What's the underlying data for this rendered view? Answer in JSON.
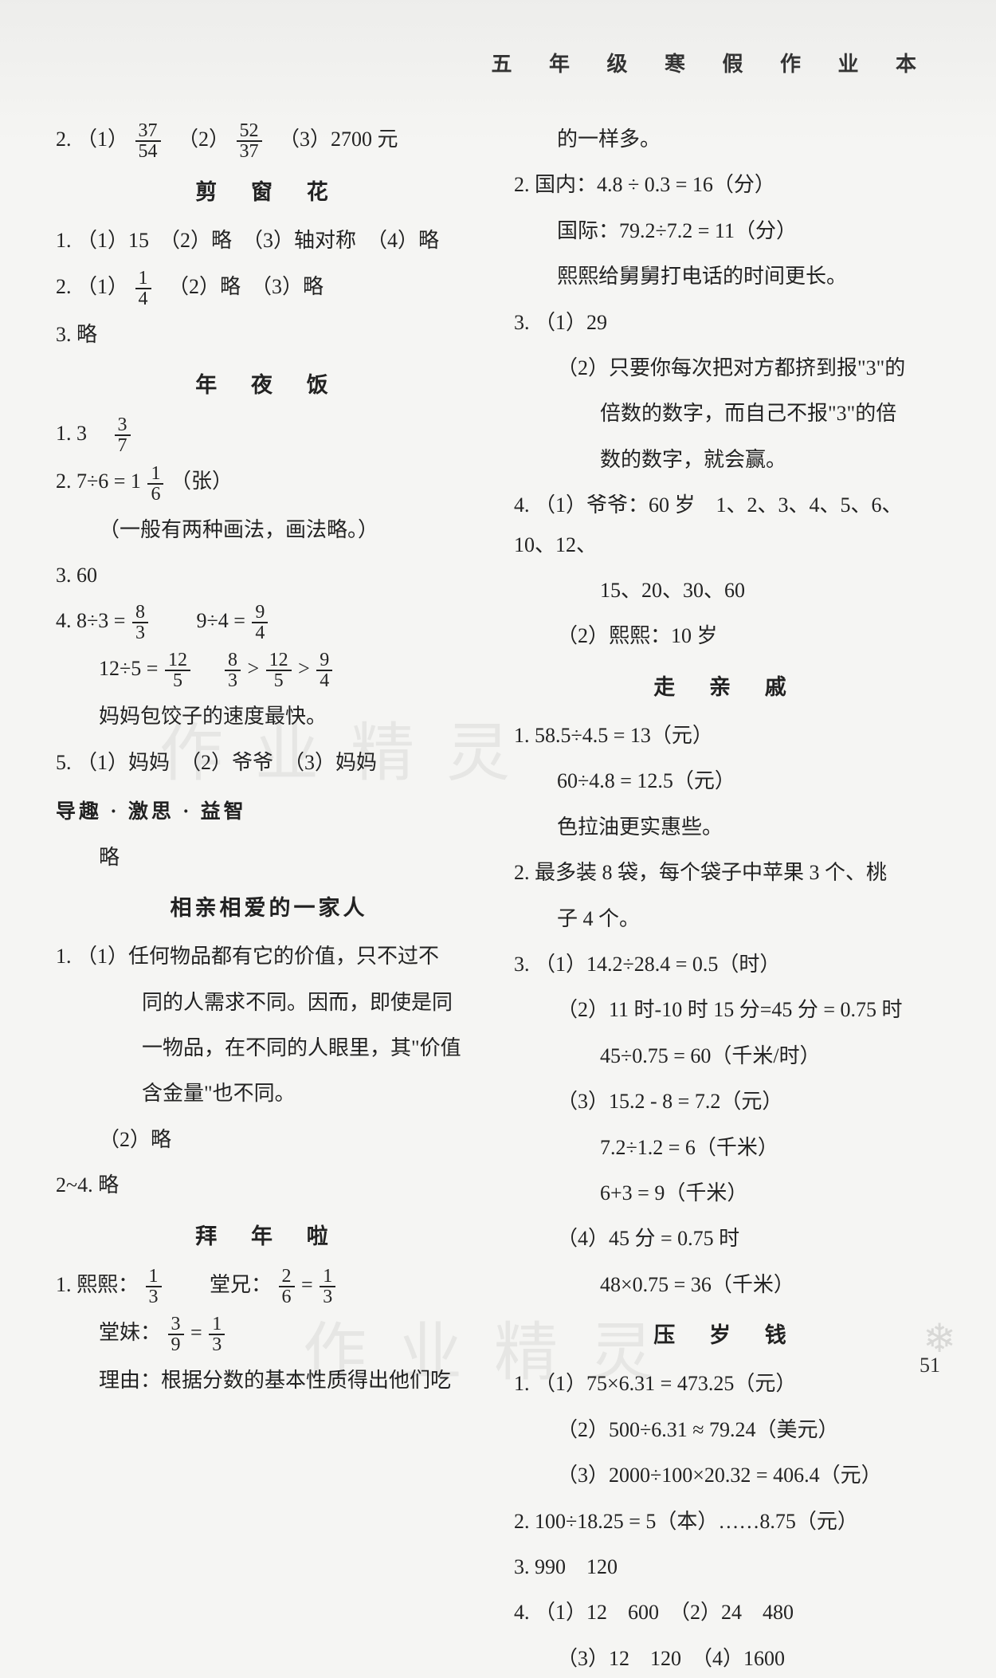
{
  "header": {
    "title": "五 年 级 寒 假 作 业 本"
  },
  "watermarks": {
    "text1": "作 业 精 灵",
    "text2": "作 业 精 灵"
  },
  "page_number": "51",
  "left_column": {
    "q2_prefix": "2. （1）",
    "q2_f1_num": "37",
    "q2_f1_den": "54",
    "q2_mid": "　（2）",
    "q2_f2_num": "52",
    "q2_f2_den": "37",
    "q2_end": "　（3）2700 元",
    "sec1": "剪 窗 花",
    "s1_q1": "1. （1）15　（2）略　（3）轴对称　（4）略",
    "s1_q2_prefix": "2. （1）",
    "s1_q2_f_num": "1",
    "s1_q2_f_den": "4",
    "s1_q2_end": "　（2）略　（3）略",
    "s1_q3": "3. 略",
    "sec2": "年 夜 饭",
    "s2_q1_prefix": "1. 3　",
    "s2_q1_f_num": "3",
    "s2_q1_f_den": "7",
    "s2_q2_prefix": "2. 7÷6 = 1",
    "s2_q2_f_num": "1",
    "s2_q2_f_den": "6",
    "s2_q2_end": "（张）",
    "s2_q2_note": "（一般有两种画法，画法略。）",
    "s2_q3": "3. 60",
    "s2_q4a_prefix": "4. 8÷3 = ",
    "s2_q4a_f1_num": "8",
    "s2_q4a_f1_den": "3",
    "s2_q4a_mid": "　　9÷4 = ",
    "s2_q4a_f2_num": "9",
    "s2_q4a_f2_den": "4",
    "s2_q4b_prefix": "12÷5 = ",
    "s2_q4b_f1_num": "12",
    "s2_q4b_f1_den": "5",
    "s2_q4b_mid1": "　",
    "s2_q4b_f2_num": "8",
    "s2_q4b_f2_den": "3",
    "s2_q4b_gt1": ">",
    "s2_q4b_f3_num": "12",
    "s2_q4b_f3_den": "5",
    "s2_q4b_gt2": ">",
    "s2_q4b_f4_num": "9",
    "s2_q4b_f4_den": "4",
    "s2_q4_note": "妈妈包饺子的速度最快。",
    "s2_q5": "5. （1）妈妈　（2）爷爷　（3）妈妈",
    "sub1": "导趣 · 激思 · 益智",
    "sub1_content": "略",
    "sec3": "相亲相爱的一家人",
    "s3_q1a": "1. （1）任何物品都有它的价值，只不过不",
    "s3_q1b": "同的人需求不同。因而，即使是同",
    "s3_q1c": "一物品，在不同的人眼里，其\"价值",
    "s3_q1d": "含金量\"也不同。",
    "s3_q1e": "（2）略",
    "s3_q24": "2~4. 略",
    "sec4": "拜 年 啦",
    "s4_q1a_prefix": "1. 熙熙：",
    "s4_q1a_f1_num": "1",
    "s4_q1a_f1_den": "3",
    "s4_q1a_mid": "　　堂兄：",
    "s4_q1a_f2_num": "2",
    "s4_q1a_f2_den": "6",
    "s4_q1a_eq": " = ",
    "s4_q1a_f3_num": "1",
    "s4_q1a_f3_den": "3",
    "s4_q1b_prefix": "堂妹：",
    "s4_q1b_f1_num": "3",
    "s4_q1b_f1_den": "9",
    "s4_q1b_eq": " = ",
    "s4_q1b_f2_num": "1",
    "s4_q1b_f2_den": "3",
    "s4_q1_note": "理由：根据分数的基本性质得出他们吃"
  },
  "right_column": {
    "r1": "的一样多。",
    "r2a": "2. 国内：4.8 ÷ 0.3 = 16（分）",
    "r2b": "国际：79.2÷7.2 = 11（分）",
    "r2c": "熙熙给舅舅打电话的时间更长。",
    "r3a": "3. （1）29",
    "r3b": "（2）只要你每次把对方都挤到报\"3\"的",
    "r3c": "倍数的数字，而自己不报\"3\"的倍",
    "r3d": "数的数字，就会赢。",
    "r4a": "4. （1）爷爷：60 岁　1、2、3、4、5、6、10、12、",
    "r4b": "15、20、30、60",
    "r4c": "（2）熙熙：10 岁",
    "sec5": "走 亲 戚",
    "s5_q1a": "1. 58.5÷4.5 = 13（元）",
    "s5_q1b": "60÷4.8 = 12.5（元）",
    "s5_q1c": "色拉油更实惠些。",
    "s5_q2a": "2. 最多装 8 袋，每个袋子中苹果 3 个、桃",
    "s5_q2b": "子 4 个。",
    "s5_q3a": "3. （1）14.2÷28.4 = 0.5（时）",
    "s5_q3b": "（2）11 时-10 时 15 分=45 分 = 0.75 时",
    "s5_q3c": "45÷0.75 = 60（千米/时）",
    "s5_q3d": "（3）15.2 - 8 = 7.2（元）",
    "s5_q3e": "7.2÷1.2 = 6（千米）",
    "s5_q3f": "6+3 = 9（千米）",
    "s5_q3g": "（4）45 分 = 0.75 时",
    "s5_q3h": "48×0.75 = 36（千米）",
    "sec6": "压 岁 钱",
    "s6_q1a": "1. （1）75×6.31 = 473.25（元）",
    "s6_q1b": "（2）500÷6.31 ≈ 79.24（美元）",
    "s6_q1c": "（3）2000÷100×20.32 = 406.4（元）",
    "s6_q2": "2. 100÷18.25 = 5（本）……8.75（元）",
    "s6_q3": "3. 990　120",
    "s6_q4a": "4. （1）12　600　（2）24　480",
    "s6_q4b": "（3）12　120　（4）1600"
  }
}
